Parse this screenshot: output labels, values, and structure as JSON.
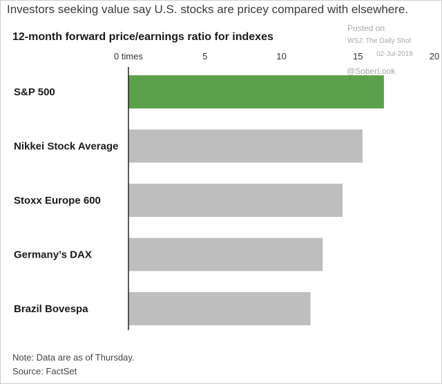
{
  "header": {
    "headline": "Investors seeking value say U.S. stocks are pricey compared with elsewhere.",
    "subtitle": "12-month forward price/earnings ratio for indexes"
  },
  "watermark": {
    "posted_on": "Posted on",
    "source_name": "WSJ: The Daily Shot",
    "date": "02-Jul-2019",
    "handle": "@SoberLook"
  },
  "footer": {
    "note": "Note: Data are as of Thursday.",
    "source": "Source: FactSet"
  },
  "chart_data": {
    "type": "bar",
    "orientation": "horizontal",
    "categories": [
      "S&P 500",
      "Nikkei Stock Average",
      "Stoxx Europe 600",
      "Germany’s DAX",
      "Brazil Bovespa"
    ],
    "values": [
      16.7,
      15.3,
      14.0,
      12.7,
      11.9
    ],
    "highlight_index": 0,
    "xlim": [
      0,
      20
    ],
    "ticks": [
      0,
      5,
      10,
      15,
      20
    ],
    "tick_labels": [
      "0 times",
      "5",
      "10",
      "15",
      "20"
    ],
    "grid": false,
    "legend": "none",
    "colors": {
      "highlight": "#5ba04a",
      "default": "#bebebe",
      "axis": "#222222"
    }
  }
}
